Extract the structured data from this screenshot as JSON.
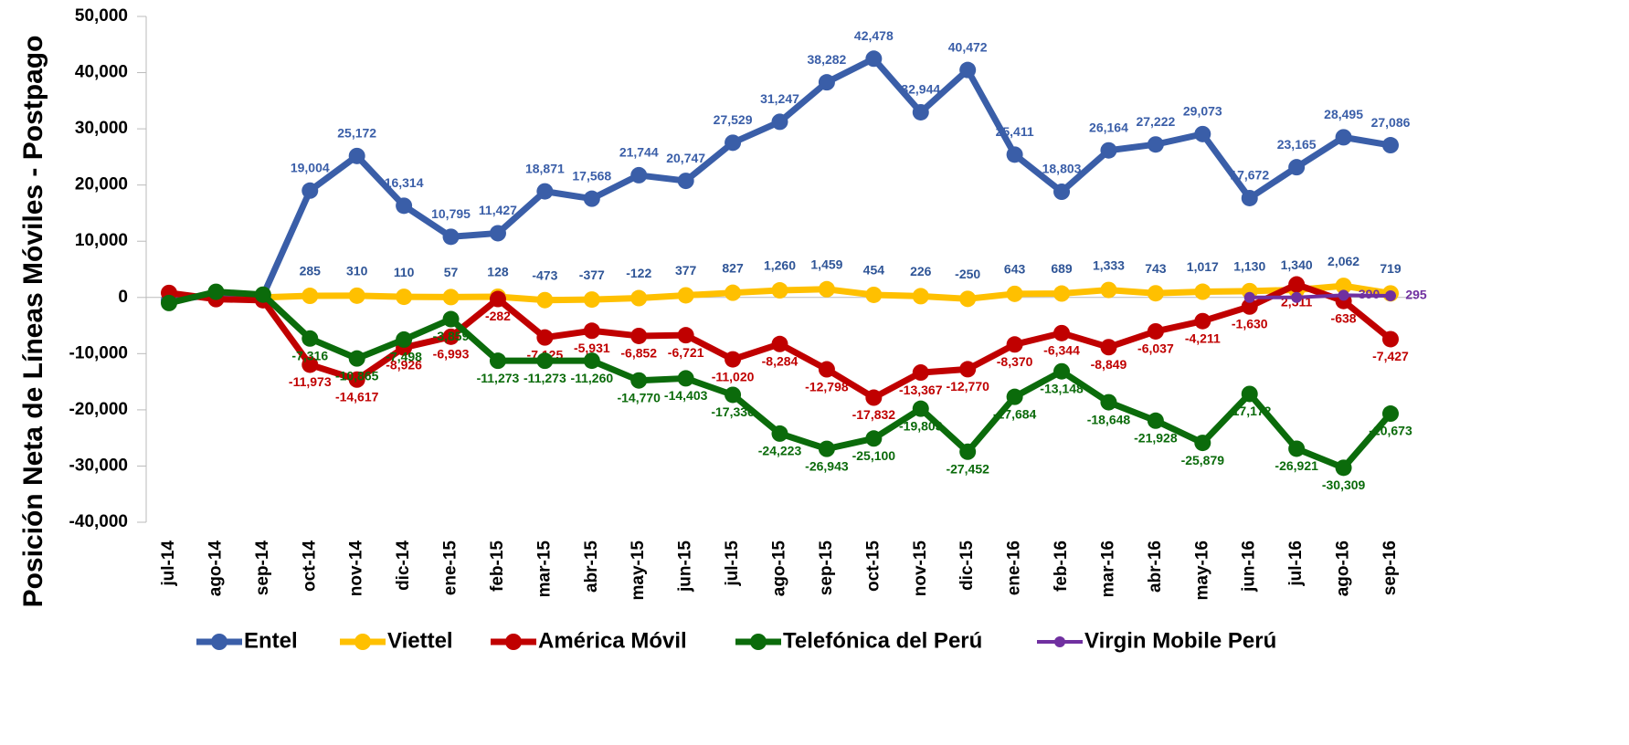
{
  "chart_data": {
    "type": "line",
    "y_label": "Posición Neta de Líneas Móviles - Postpago",
    "categories": [
      "jul-14",
      "ago-14",
      "sep-14",
      "oct-14",
      "nov-14",
      "dic-14",
      "ene-15",
      "feb-15",
      "mar-15",
      "abr-15",
      "may-15",
      "jun-15",
      "jul-15",
      "ago-15",
      "sep-15",
      "oct-15",
      "nov-15",
      "dic-15",
      "ene-16",
      "feb-16",
      "mar-16",
      "abr-16",
      "may-16",
      "jun-16",
      "jul-16",
      "ago-16",
      "sep-16"
    ],
    "ylim": [
      -40000,
      50000
    ],
    "yticks": [
      {
        "value": -40000,
        "label": "-40,000"
      },
      {
        "value": -30000,
        "label": "-30,000"
      },
      {
        "value": -20000,
        "label": "-20,000"
      },
      {
        "value": -10000,
        "label": "-10,000"
      },
      0,
      {
        "value": 10000,
        "label": "10,000"
      },
      {
        "value": 20000,
        "label": "20,000"
      },
      {
        "value": 30000,
        "label": "30,000"
      },
      {
        "value": 40000,
        "label": "40,000"
      },
      {
        "value": 50000,
        "label": "50,000"
      }
    ],
    "legend": "bottom",
    "series": [
      {
        "name": "Entel",
        "color": "#3a5ea8",
        "values": [
          -500,
          500,
          300,
          19004,
          25172,
          16314,
          10795,
          11427,
          18871,
          17568,
          21744,
          20747,
          27529,
          31247,
          38282,
          42478,
          32944,
          40472,
          25411,
          18803,
          26164,
          27222,
          29073,
          17672,
          23165,
          28495,
          27086
        ],
        "value_labels": [
          null,
          null,
          null,
          "19,004",
          "25,172",
          "16,314",
          "10,795",
          "11,427",
          "18,871",
          "17,568",
          "21,744",
          "20,747",
          "27,529",
          "31,247",
          "38,282",
          "42,478",
          "32,944",
          "40,472",
          "25,411",
          "18,803",
          "26,164",
          "27,222",
          "29,073",
          "17,672",
          "23,165",
          "28,495",
          "27,086"
        ]
      },
      {
        "name": "Viettel",
        "color": "#ffc000",
        "values": [
          null,
          null,
          0,
          285,
          310,
          110,
          57,
          128,
          -473,
          -377,
          -122,
          377,
          827,
          1260,
          1459,
          454,
          226,
          -250,
          643,
          689,
          1333,
          743,
          1017,
          1130,
          1340,
          2062,
          719
        ],
        "value_labels": [
          null,
          null,
          null,
          "285",
          "310",
          "110",
          "57",
          "128",
          "-473",
          "-377",
          "-122",
          "377",
          "827",
          "1,260",
          "1,459",
          "454",
          "226",
          "-250",
          "643",
          "689",
          "1,333",
          "743",
          "1,017",
          "1,130",
          "1,340",
          "2,062",
          "719"
        ]
      },
      {
        "name": "América Móvil",
        "color": "#c00000",
        "values": [
          800,
          -300,
          -500,
          -11973,
          -14617,
          -8926,
          -6993,
          -282,
          -7125,
          -5931,
          -6852,
          -6721,
          -11020,
          -8284,
          -12798,
          -17832,
          -13367,
          -12770,
          -8370,
          -6344,
          -8849,
          -6037,
          -4211,
          -1630,
          2311,
          -638,
          -7427
        ],
        "value_labels": [
          null,
          null,
          null,
          "-11,973",
          "-14,617",
          "-8,926",
          "-6,993",
          "-282",
          "-7,125",
          "-5,931",
          "-6,852",
          "-6,721",
          "-11,020",
          "-8,284",
          "-12,798",
          "-17,832",
          "-13,367",
          "-12,770",
          "-8,370",
          "-6,344",
          "-8,849",
          "-6,037",
          "-4,211",
          "-1,630",
          "2,311",
          "-638",
          "-7,427"
        ]
      },
      {
        "name": "Telefónica del Perú",
        "color": "#0b6b0b",
        "values": [
          -1000,
          1000,
          500,
          -7316,
          -10865,
          -7498,
          -3859,
          -11273,
          -11273,
          -11260,
          -14770,
          -14403,
          -17336,
          -24223,
          -26943,
          -25100,
          -19803,
          -27452,
          -17684,
          -13148,
          -18648,
          -21928,
          -25879,
          -17172,
          -26921,
          -30309,
          -20673
        ],
        "value_labels": [
          null,
          null,
          null,
          "-7,316",
          "-10,865",
          "-7,498",
          "-3,859",
          "-11,273",
          "-11,273",
          "-11,260",
          "-14,770",
          "-14,403",
          "-17,336",
          "-24,223",
          "-26,943",
          "-25,100",
          "-19,803",
          "-27,452",
          "-17,684",
          "-13,148",
          "-18,648",
          "-21,928",
          "-25,879",
          "-17,172",
          "-26,921",
          "-30,309",
          "-20,673"
        ]
      },
      {
        "name": "Virgin Mobile Perú",
        "color": "#7030a0",
        "values": [
          null,
          null,
          null,
          null,
          null,
          null,
          null,
          null,
          null,
          null,
          null,
          null,
          null,
          null,
          null,
          null,
          null,
          null,
          null,
          null,
          null,
          null,
          null,
          0,
          0,
          390,
          295
        ],
        "value_labels": [
          null,
          null,
          null,
          null,
          null,
          null,
          null,
          null,
          null,
          null,
          null,
          null,
          null,
          null,
          null,
          null,
          null,
          null,
          null,
          null,
          null,
          null,
          null,
          null,
          null,
          "390",
          "295"
        ]
      }
    ]
  }
}
